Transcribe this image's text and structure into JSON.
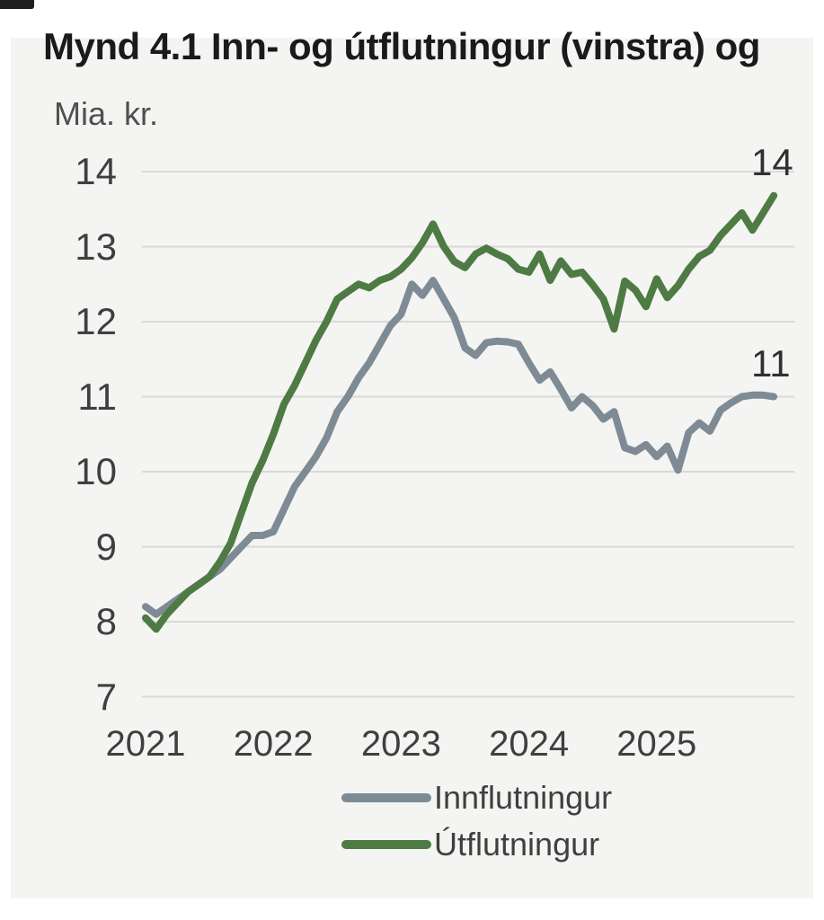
{
  "page": {
    "title": "Mynd 4.1 Inn- og útflutningur (vinstra) og"
  },
  "chart_data": {
    "type": "line",
    "title": "Mynd 4.1 Inn- og útflutningur (vinstra) og",
    "ylabel": "Mia. kr.",
    "ylim": [
      7,
      14
    ],
    "y_ticks": [
      14,
      13,
      12,
      11,
      10,
      9,
      8,
      7
    ],
    "x_tick_labels": [
      "2021",
      "2022",
      "2023",
      "2024",
      "2025"
    ],
    "x_unit": "month",
    "x_range": "Jan 2021 - Des 2025",
    "grid": true,
    "legend_position": "bottom-center",
    "series": [
      {
        "name": "Innflutningur",
        "color": "#7e8b95",
        "end_label": "11",
        "values": [
          8.2,
          8.1,
          8.2,
          8.3,
          8.4,
          8.5,
          8.6,
          8.7,
          8.85,
          9.0,
          9.15,
          9.15,
          9.2,
          9.5,
          9.8,
          10.0,
          10.2,
          10.45,
          10.8,
          11.0,
          11.25,
          11.45,
          11.7,
          11.95,
          12.1,
          12.5,
          12.35,
          12.55,
          12.3,
          12.05,
          11.65,
          11.55,
          11.72,
          11.74,
          11.73,
          11.7,
          11.45,
          11.22,
          11.33,
          11.1,
          10.85,
          11.0,
          10.88,
          10.7,
          10.8,
          10.32,
          10.27,
          10.36,
          10.2,
          10.34,
          10.02,
          10.52,
          10.65,
          10.54,
          10.82,
          10.92,
          11.0,
          11.02,
          11.02,
          11.0
        ]
      },
      {
        "name": "Útflutningur",
        "color": "#4e7b43",
        "end_label": "14",
        "values": [
          8.05,
          7.9,
          8.1,
          8.25,
          8.4,
          8.5,
          8.6,
          8.8,
          9.05,
          9.45,
          9.85,
          10.15,
          10.5,
          10.9,
          11.15,
          11.45,
          11.75,
          12.0,
          12.3,
          12.4,
          12.5,
          12.45,
          12.55,
          12.6,
          12.7,
          12.85,
          13.05,
          13.3,
          13.0,
          12.8,
          12.72,
          12.9,
          12.98,
          12.9,
          12.84,
          12.7,
          12.66,
          12.9,
          12.55,
          12.81,
          12.63,
          12.66,
          12.49,
          12.3,
          11.9,
          12.54,
          12.42,
          12.2,
          12.57,
          12.32,
          12.48,
          12.7,
          12.87,
          12.95,
          13.15,
          13.3,
          13.45,
          13.22,
          13.45,
          13.68
        ]
      }
    ]
  },
  "colors": {
    "card_background": "#f4f4f2",
    "gridline": "#d9d9d8",
    "title_text": "#1a1a1a",
    "tick_text": "#3f3f3f",
    "import_line": "#7e8b95",
    "export_line": "#4e7b43"
  }
}
